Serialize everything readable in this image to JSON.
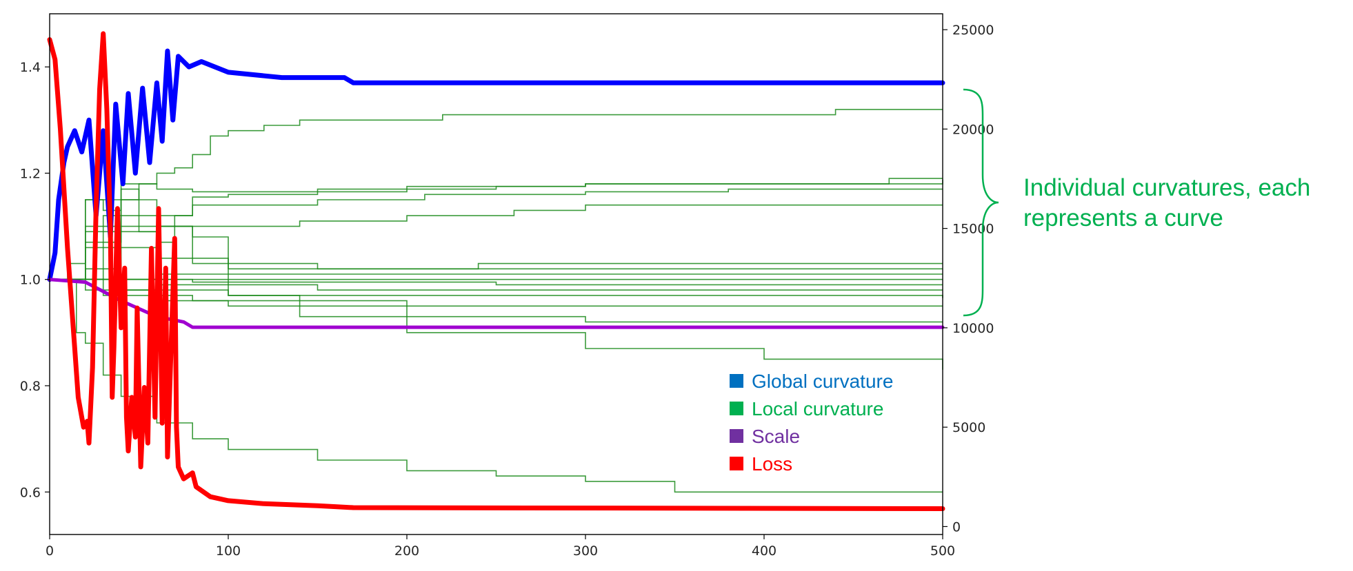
{
  "chart_data": {
    "type": "line",
    "title": "",
    "xlabel": "",
    "ylabel": "",
    "y2label": "",
    "xlim": [
      0,
      500
    ],
    "ylim": [
      0.52,
      1.5
    ],
    "y2lim": [
      -400,
      25800
    ],
    "x_ticks": [
      "0",
      "100",
      "200",
      "300",
      "400",
      "500"
    ],
    "y_ticks": [
      "0.6",
      "0.8",
      "1.0",
      "1.2",
      "1.4"
    ],
    "y2_ticks": [
      "0",
      "5000",
      "10000",
      "15000",
      "20000",
      "25000"
    ],
    "grid": false,
    "legend_position": "bottom-right",
    "legend": [
      {
        "label": "Global curvature",
        "color": "#0070C0"
      },
      {
        "label": "Local curvature",
        "color": "#00B050"
      },
      {
        "label": "Scale",
        "color": "#7030A0"
      },
      {
        "label": "Loss",
        "color": "#FF0000"
      }
    ],
    "series": [
      {
        "role": "global",
        "color": "#0000FF",
        "axis": "left",
        "points": [
          [
            0,
            1.0
          ],
          [
            3,
            1.05
          ],
          [
            5,
            1.15
          ],
          [
            8,
            1.22
          ],
          [
            10,
            1.25
          ],
          [
            14,
            1.28
          ],
          [
            18,
            1.24
          ],
          [
            22,
            1.3
          ],
          [
            26,
            1.12
          ],
          [
            30,
            1.28
          ],
          [
            34,
            1.08
          ],
          [
            37,
            1.33
          ],
          [
            41,
            1.18
          ],
          [
            44,
            1.35
          ],
          [
            48,
            1.2
          ],
          [
            52,
            1.36
          ],
          [
            56,
            1.22
          ],
          [
            60,
            1.37
          ],
          [
            63,
            1.26
          ],
          [
            66,
            1.43
          ],
          [
            69,
            1.3
          ],
          [
            72,
            1.42
          ],
          [
            78,
            1.4
          ],
          [
            85,
            1.41
          ],
          [
            100,
            1.39
          ],
          [
            130,
            1.38
          ],
          [
            165,
            1.38
          ],
          [
            170,
            1.37
          ],
          [
            500,
            1.37
          ]
        ]
      },
      {
        "role": "scale",
        "color": "#A000D0",
        "axis": "left",
        "points": [
          [
            0,
            1.0
          ],
          [
            20,
            0.995
          ],
          [
            40,
            0.96
          ],
          [
            60,
            0.93
          ],
          [
            75,
            0.92
          ],
          [
            80,
            0.91
          ],
          [
            500,
            0.91
          ]
        ]
      },
      {
        "role": "loss",
        "color": "#FF0000",
        "axis": "right",
        "points": [
          [
            0,
            24500
          ],
          [
            3,
            23500
          ],
          [
            6,
            20000
          ],
          [
            10,
            14000
          ],
          [
            14,
            9000
          ],
          [
            16,
            6500
          ],
          [
            19,
            5000
          ],
          [
            21,
            5300
          ],
          [
            22,
            4200
          ],
          [
            24,
            8000
          ],
          [
            26,
            16000
          ],
          [
            28,
            22000
          ],
          [
            30,
            24800
          ],
          [
            32,
            21000
          ],
          [
            34,
            15000
          ],
          [
            35,
            6500
          ],
          [
            36,
            9000
          ],
          [
            38,
            16000
          ],
          [
            40,
            10000
          ],
          [
            42,
            13000
          ],
          [
            43,
            5500
          ],
          [
            44,
            3800
          ],
          [
            46,
            6500
          ],
          [
            48,
            4500
          ],
          [
            49,
            11000
          ],
          [
            51,
            3000
          ],
          [
            53,
            7000
          ],
          [
            55,
            4200
          ],
          [
            57,
            14000
          ],
          [
            59,
            5500
          ],
          [
            61,
            16000
          ],
          [
            63,
            5200
          ],
          [
            65,
            13000
          ],
          [
            66,
            3500
          ],
          [
            68,
            9000
          ],
          [
            70,
            14500
          ],
          [
            71,
            5000
          ],
          [
            72,
            3000
          ],
          [
            75,
            2400
          ],
          [
            80,
            2700
          ],
          [
            82,
            2000
          ],
          [
            90,
            1500
          ],
          [
            100,
            1300
          ],
          [
            120,
            1150
          ],
          [
            150,
            1050
          ],
          [
            160,
            1000
          ],
          [
            170,
            950
          ],
          [
            500,
            900
          ]
        ]
      }
    ],
    "local_series": [
      {
        "name": "",
        "points": [
          [
            0,
            1.0
          ],
          [
            20,
            1.07
          ],
          [
            40,
            1.15
          ],
          [
            50,
            1.18
          ],
          [
            60,
            1.2
          ],
          [
            70,
            1.21
          ],
          [
            80,
            1.235
          ],
          [
            90,
            1.27
          ],
          [
            100,
            1.28
          ],
          [
            120,
            1.29
          ],
          [
            140,
            1.3
          ],
          [
            180,
            1.3
          ],
          [
            200,
            1.3
          ],
          [
            220,
            1.31
          ],
          [
            300,
            1.31
          ],
          [
            440,
            1.31
          ],
          [
            440,
            1.32
          ],
          [
            500,
            1.32
          ]
        ]
      },
      {
        "name": "",
        "points": [
          [
            0,
            1.0
          ],
          [
            10,
            1.03
          ],
          [
            20,
            1.15
          ],
          [
            30,
            1.13
          ],
          [
            40,
            1.17
          ],
          [
            50,
            1.09
          ],
          [
            60,
            1.07
          ],
          [
            70,
            1.12
          ],
          [
            80,
            1.155
          ],
          [
            100,
            1.16
          ],
          [
            150,
            1.17
          ],
          [
            250,
            1.175
          ],
          [
            300,
            1.18
          ],
          [
            450,
            1.18
          ],
          [
            470,
            1.19
          ],
          [
            500,
            1.19
          ]
        ]
      },
      {
        "name": "",
        "points": [
          [
            0,
            1.0
          ],
          [
            20,
            1.15
          ],
          [
            40,
            1.18
          ],
          [
            60,
            1.17
          ],
          [
            80,
            1.165
          ],
          [
            160,
            1.165
          ],
          [
            200,
            1.175
          ],
          [
            300,
            1.18
          ],
          [
            500,
            1.188
          ]
        ]
      },
      {
        "name": "",
        "points": [
          [
            0,
            1.0
          ],
          [
            30,
            1.12
          ],
          [
            80,
            1.14
          ],
          [
            150,
            1.15
          ],
          [
            210,
            1.16
          ],
          [
            300,
            1.165
          ],
          [
            380,
            1.17
          ],
          [
            500,
            1.17
          ]
        ]
      },
      {
        "name": "",
        "points": [
          [
            0,
            1.0
          ],
          [
            20,
            1.1
          ],
          [
            80,
            1.1
          ],
          [
            100,
            1.1
          ],
          [
            140,
            1.11
          ],
          [
            200,
            1.12
          ],
          [
            260,
            1.13
          ],
          [
            300,
            1.14
          ],
          [
            400,
            1.14
          ],
          [
            500,
            1.14
          ]
        ]
      },
      {
        "name": "",
        "points": [
          [
            0,
            1.0
          ],
          [
            20,
            1.09
          ],
          [
            60,
            1.1
          ],
          [
            80,
            1.08
          ],
          [
            100,
            1.03
          ],
          [
            150,
            1.02
          ],
          [
            240,
            1.03
          ],
          [
            300,
            1.03
          ],
          [
            400,
            1.03
          ],
          [
            500,
            1.03
          ]
        ]
      },
      {
        "name": "",
        "points": [
          [
            0,
            1.0
          ],
          [
            20,
            1.06
          ],
          [
            60,
            1.04
          ],
          [
            100,
            1.02
          ],
          [
            160,
            1.02
          ],
          [
            300,
            1.02
          ],
          [
            500,
            1.02
          ]
        ]
      },
      {
        "name": "",
        "points": [
          [
            0,
            1.0
          ],
          [
            60,
            1.01
          ],
          [
            200,
            1.01
          ],
          [
            500,
            1.01
          ]
        ]
      },
      {
        "name": "",
        "points": [
          [
            0,
            1.0
          ],
          [
            100,
            1.0
          ],
          [
            300,
            1.0
          ],
          [
            500,
            1.0
          ]
        ]
      },
      {
        "name": "",
        "points": [
          [
            0,
            1.0
          ],
          [
            80,
            0.995
          ],
          [
            250,
            0.99
          ],
          [
            500,
            0.99
          ]
        ]
      },
      {
        "name": "",
        "points": [
          [
            0,
            1.0
          ],
          [
            60,
            0.99
          ],
          [
            150,
            0.98
          ],
          [
            300,
            0.98
          ],
          [
            500,
            0.98
          ]
        ]
      },
      {
        "name": "",
        "points": [
          [
            0,
            1.0
          ],
          [
            40,
            0.98
          ],
          [
            100,
            0.97
          ],
          [
            200,
            0.97
          ],
          [
            400,
            0.97
          ],
          [
            500,
            0.965
          ]
        ]
      },
      {
        "name": "",
        "points": [
          [
            0,
            1.0
          ],
          [
            30,
            0.97
          ],
          [
            80,
            0.96
          ],
          [
            200,
            0.95
          ],
          [
            350,
            0.95
          ],
          [
            500,
            0.95
          ]
        ]
      },
      {
        "name": "",
        "points": [
          [
            0,
            1.0
          ],
          [
            20,
            0.98
          ],
          [
            60,
            0.96
          ],
          [
            100,
            0.95
          ],
          [
            200,
            0.93
          ],
          [
            300,
            0.92
          ],
          [
            500,
            0.92
          ]
        ]
      },
      {
        "name": "",
        "points": [
          [
            0,
            1.0
          ],
          [
            20,
            1.02
          ],
          [
            40,
            1.15
          ],
          [
            60,
            1.1
          ],
          [
            80,
            1.03
          ],
          [
            100,
            0.97
          ],
          [
            140,
            0.93
          ],
          [
            200,
            0.9
          ],
          [
            300,
            0.87
          ],
          [
            400,
            0.85
          ],
          [
            500,
            0.83
          ]
        ]
      },
      {
        "name": "",
        "points": [
          [
            0,
            1.0
          ],
          [
            15,
            0.9
          ],
          [
            20,
            0.88
          ],
          [
            30,
            0.82
          ],
          [
            40,
            0.78
          ],
          [
            60,
            0.73
          ],
          [
            80,
            0.7
          ],
          [
            100,
            0.68
          ],
          [
            150,
            0.66
          ],
          [
            200,
            0.64
          ],
          [
            250,
            0.63
          ],
          [
            300,
            0.62
          ],
          [
            350,
            0.6
          ],
          [
            500,
            0.6
          ]
        ]
      }
    ],
    "annotation": "Individual curvatures, each represents a curve"
  }
}
